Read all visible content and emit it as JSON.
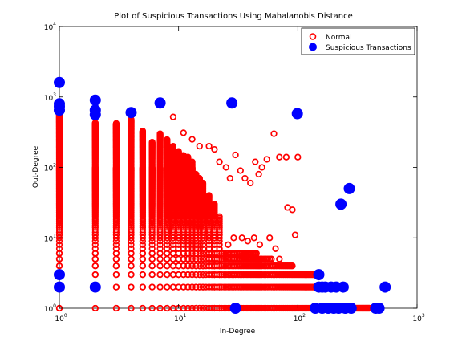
{
  "chart_data": {
    "type": "scatter",
    "title": "Plot of Suspicious Transactions Using Mahalanobis Distance",
    "xlabel": "In-Degree",
    "ylabel": "Out-Degree",
    "xscale": "log",
    "yscale": "log",
    "xlim": [
      1,
      1000
    ],
    "ylim": [
      1,
      10000
    ],
    "xticks": [
      {
        "base": "10",
        "exp": "0",
        "value": 1
      },
      {
        "base": "10",
        "exp": "1",
        "value": 10
      },
      {
        "base": "10",
        "exp": "2",
        "value": 100
      },
      {
        "base": "10",
        "exp": "3",
        "value": 1000
      }
    ],
    "yticks": [
      {
        "base": "10",
        "exp": "0",
        "value": 1
      },
      {
        "base": "10",
        "exp": "1",
        "value": 10
      },
      {
        "base": "10",
        "exp": "2",
        "value": 100
      },
      {
        "base": "10",
        "exp": "3",
        "value": 1000
      },
      {
        "base": "10",
        "exp": "4",
        "value": 10000
      }
    ],
    "grid": false,
    "legend_position": "top-right",
    "series": [
      {
        "name": "Normal",
        "marker": "open-circle",
        "color": "#ff0000",
        "columns": [
          {
            "x": 1,
            "ymax": 600
          },
          {
            "x": 2,
            "ymax": 430
          },
          {
            "x": 3,
            "ymax": 420
          },
          {
            "x": 4,
            "ymax": 480
          },
          {
            "x": 5,
            "ymax": 330
          },
          {
            "x": 6,
            "ymax": 230
          },
          {
            "x": 7,
            "ymax": 300
          },
          {
            "x": 8,
            "ymax": 250
          },
          {
            "x": 9,
            "ymax": 200
          },
          {
            "x": 10,
            "ymax": 170
          },
          {
            "x": 11,
            "ymax": 150
          },
          {
            "x": 12,
            "ymax": 140
          },
          {
            "x": 13,
            "ymax": 120
          },
          {
            "x": 14,
            "ymax": 80
          },
          {
            "x": 15,
            "ymax": 70
          },
          {
            "x": 16,
            "ymax": 60
          },
          {
            "x": 18,
            "ymax": 40
          },
          {
            "x": 20,
            "ymax": 30
          },
          {
            "x": 22,
            "ymax": 20
          }
        ],
        "bottom_rows": [
          {
            "y": 1,
            "xmax": 400
          },
          {
            "y": 2,
            "xmax": 200
          },
          {
            "y": 3,
            "xmax": 150
          },
          {
            "y": 4,
            "xmax": 90
          },
          {
            "y": 5,
            "xmax": 60
          },
          {
            "y": 6,
            "xmax": 45
          }
        ],
        "points": [
          [
            9,
            520
          ],
          [
            11,
            310
          ],
          [
            13,
            250
          ],
          [
            15,
            200
          ],
          [
            18,
            200
          ],
          [
            20,
            180
          ],
          [
            22,
            120
          ],
          [
            25,
            100
          ],
          [
            27,
            70
          ],
          [
            30,
            150
          ],
          [
            33,
            90
          ],
          [
            36,
            70
          ],
          [
            40,
            60
          ],
          [
            44,
            120
          ],
          [
            47,
            80
          ],
          [
            50,
            100
          ],
          [
            55,
            130
          ],
          [
            63,
            300
          ],
          [
            70,
            140
          ],
          [
            80,
            140
          ],
          [
            82,
            27
          ],
          [
            90,
            25
          ],
          [
            95,
            11
          ],
          [
            100,
            140
          ],
          [
            29,
            10
          ],
          [
            34,
            10
          ],
          [
            38,
            9
          ],
          [
            43,
            10
          ],
          [
            48,
            8
          ],
          [
            58,
            10
          ],
          [
            65,
            7
          ],
          [
            70,
            5
          ],
          [
            26,
            8
          ],
          [
            23,
            6
          ],
          [
            21,
            5
          ]
        ]
      },
      {
        "name": "Suspicious Transactions",
        "marker": "filled-circle",
        "color": "#0000ff",
        "points": [
          [
            1,
            1600
          ],
          [
            1,
            800
          ],
          [
            1,
            730
          ],
          [
            1,
            650
          ],
          [
            1,
            3
          ],
          [
            1,
            2
          ],
          [
            2,
            900
          ],
          [
            2,
            650
          ],
          [
            2,
            560
          ],
          [
            2,
            2
          ],
          [
            4,
            600
          ],
          [
            7,
            820
          ],
          [
            28,
            820
          ],
          [
            99,
            580
          ],
          [
            150,
            3
          ],
          [
            150,
            2
          ],
          [
            160,
            2
          ],
          [
            170,
            2
          ],
          [
            190,
            2
          ],
          [
            210,
            2
          ],
          [
            240,
            2
          ],
          [
            540,
            2
          ],
          [
            140,
            1
          ],
          [
            160,
            1
          ],
          [
            180,
            1
          ],
          [
            200,
            1
          ],
          [
            220,
            1
          ],
          [
            250,
            1
          ],
          [
            280,
            1
          ],
          [
            30,
            1
          ],
          [
            450,
            1
          ],
          [
            480,
            1
          ],
          [
            230,
            30
          ],
          [
            270,
            50
          ]
        ]
      }
    ]
  }
}
